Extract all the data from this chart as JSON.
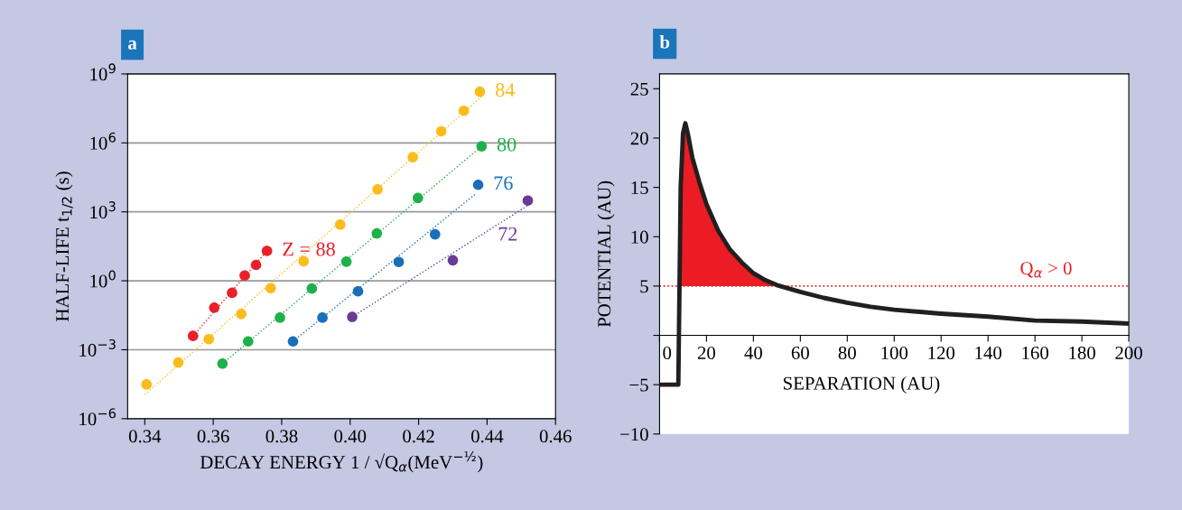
{
  "chart_data": [
    {
      "type": "scatter",
      "title": "a",
      "xlabel": "DECAY ENERGY 1 / √Q$_{α}$(MeV$^{−½}$)",
      "ylabel": "HALF-LIFE t$_{1/2}$ (s)",
      "log": "y",
      "grid": "y",
      "marker": "circle",
      "xlim": [
        0.335,
        0.46
      ],
      "xticks": [
        0.34,
        0.36,
        0.38,
        {
          "value": 0.4,
          "label": "0.40"
        },
        0.42,
        0.44,
        0.46
      ],
      "ylim": [
        1e-06,
        1000000000.0
      ],
      "yticks": [
        {
          "value": 1e-06,
          "label": "10$^{−6}$"
        },
        {
          "value": 0.001,
          "label": "10$^{−3}$"
        },
        {
          "value": 1,
          "label": "10$^{0}$"
        },
        {
          "value": 1000.0,
          "label": "10$^{3}$"
        },
        {
          "value": 1000000.0,
          "label": "10$^{6}$"
        },
        {
          "value": 1000000000.0,
          "label": "10$^{9}$"
        }
      ],
      "series": [
        {
          "type": "line",
          "marker": "none",
          "line_style": "dotted",
          "color": "#e8202a",
          "x": [
            0.3541,
            0.3757
          ],
          "values": [
            0.004,
            20
          ]
        },
        {
          "type": "line",
          "marker": "none",
          "line_style": "dotted",
          "color": "#fbbc1b",
          "x": [
            0.34,
            0.4386
          ],
          "values": [
            1.1e-05,
            110000000.0
          ]
        },
        {
          "type": "line",
          "marker": "none",
          "line_style": "dotted",
          "color": "#20b04b",
          "x": [
            0.3627,
            0.4384
          ],
          "values": [
            0.00025,
            710000
          ]
        },
        {
          "type": "line",
          "marker": "none",
          "line_style": "dotted",
          "color": "#1a6fb8",
          "x": [
            0.3833,
            0.4369
          ],
          "values": [
            0.0023,
            6500
          ]
        },
        {
          "type": "line",
          "marker": "none",
          "line_style": "dotted",
          "color": "#6a3a98",
          "x": [
            0.4006,
            0.4519
          ],
          "values": [
            0.027,
            1900
          ]
        },
        {
          "name": "Z = 88",
          "color": "#e8202a",
          "x": [
            0.3541,
            0.3603,
            0.3655,
            0.3692,
            0.3725,
            0.3757
          ],
          "values": [
            0.004,
            0.068,
            0.3,
            1.7,
            4.9,
            20
          ]
        },
        {
          "name": "84",
          "color": "#fbbc1b",
          "x": [
            0.3405,
            0.3498,
            0.3587,
            0.3682,
            0.3768,
            0.3864,
            0.3971,
            0.408,
            0.4183,
            0.4266,
            0.4332,
            0.4379
          ],
          "values": [
            3.1e-05,
            0.00028,
            0.0029,
            0.036,
            0.48,
            7.1,
            280,
            9500,
            240000,
            3200000,
            25000000,
            170000000
          ]
        },
        {
          "name": "80",
          "color": "#20b04b",
          "x": [
            0.3627,
            0.3702,
            0.3795,
            0.3888,
            0.3989,
            0.4078,
            0.4198,
            0.4384
          ],
          "values": [
            0.00025,
            0.0023,
            0.025,
            0.46,
            6.8,
            115,
            4000,
            710000
          ]
        },
        {
          "name": "76",
          "color": "#1a6fb8",
          "x": [
            0.3833,
            0.3919,
            0.4023,
            0.4142,
            0.4248,
            0.4374
          ],
          "values": [
            0.0023,
            0.025,
            0.35,
            6.6,
            105,
            15000
          ]
        },
        {
          "name": "72",
          "color": "#6a3a98",
          "x": [
            0.4006,
            0.43,
            0.4519
          ],
          "values": [
            0.027,
            7.8,
            3100
          ]
        }
      ]
    },
    {
      "type": "line",
      "title": "b",
      "xlabel": "SEPARATION (AU)",
      "ylabel": "POTENTIAL (AU)",
      "grid": false,
      "xlim": [
        0,
        200
      ],
      "xticks": [
        0,
        20,
        40,
        60,
        80,
        100,
        120,
        140,
        160,
        180,
        200
      ],
      "ylim": [
        -10,
        26.5
      ],
      "yticks": [
        {
          "value": -10,
          "label": "−10"
        },
        {
          "value": -5,
          "label": "−5"
        },
        {
          "value": 0,
          "label": null
        },
        5,
        10,
        15,
        20,
        25
      ],
      "ref_lines": [
        {
          "axis": "y",
          "value": 5,
          "label": "Q$_{α}$ > 0",
          "color": "#ec1c24",
          "line_style": "dotted"
        }
      ],
      "series": [
        {
          "type": "area",
          "color": "#ec1c24",
          "x": [
            8.5,
            9,
            10,
            11,
            12,
            14,
            17,
            20,
            25,
            30,
            35,
            40,
            45,
            50,
            52
          ],
          "values": [
            5,
            15,
            20.5,
            21.5,
            20.5,
            18,
            15.5,
            13.3,
            10.6,
            8.7,
            7.4,
            6.3,
            5.6,
            5.1,
            5
          ]
        },
        {
          "type": "line",
          "marker": "none",
          "color": "#231f20",
          "x": [
            0,
            8,
            8.5,
            9,
            10,
            11,
            12,
            14,
            17,
            20,
            25,
            30,
            35,
            40,
            45,
            50,
            60,
            70,
            80,
            90,
            100,
            120,
            140,
            160,
            180,
            200
          ],
          "values": [
            -5,
            -5,
            5,
            15,
            20.5,
            21.5,
            20.5,
            18,
            15.5,
            13.3,
            10.6,
            8.7,
            7.4,
            6.3,
            5.6,
            5.1,
            4.4,
            3.8,
            3.3,
            2.9,
            2.6,
            2.2,
            1.9,
            1.5,
            1.4,
            1.2
          ]
        }
      ]
    }
  ]
}
